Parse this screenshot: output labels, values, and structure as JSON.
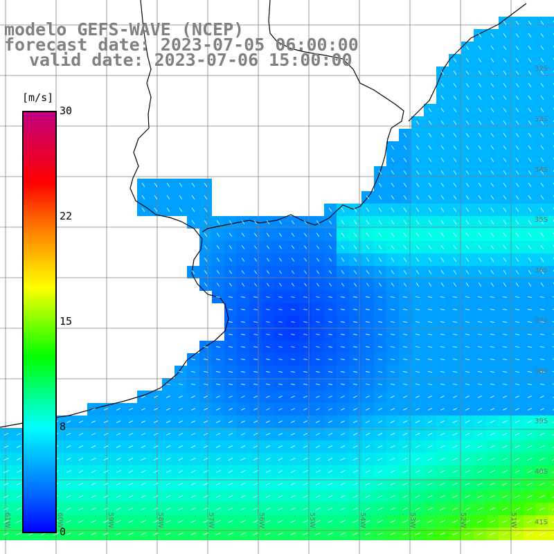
{
  "header": {
    "model_line": "modelo GEFS-WAVE (NCEP)",
    "forecast_line": "forecast date: 2023-07-05 06:00:00",
    "valid_line": "valid date: 2023-07-06 15:00:00"
  },
  "colorbar": {
    "units": "[m/s]",
    "ticks": [
      "30",
      "22",
      "15",
      "8",
      "0"
    ],
    "colors": [
      "#0000ff",
      "#0060ff",
      "#00b0ff",
      "#00ffff",
      "#00ff80",
      "#00ff00",
      "#80ff00",
      "#ffff00",
      "#ffb000",
      "#ff6000",
      "#ff0000",
      "#e00040",
      "#c00080"
    ]
  },
  "map": {
    "lat_labels": [
      "32S",
      "33S",
      "34S",
      "35S",
      "36S",
      "37S",
      "38S",
      "39S",
      "40S",
      "41S"
    ],
    "lon_labels": [
      "61W",
      "60W",
      "59W",
      "58W",
      "57W",
      "56W",
      "55W",
      "54W",
      "53W",
      "52W",
      "51W"
    ],
    "land_color": "#ffffff",
    "grid_color": "#808080",
    "arrow_color": "#ffffff"
  }
}
